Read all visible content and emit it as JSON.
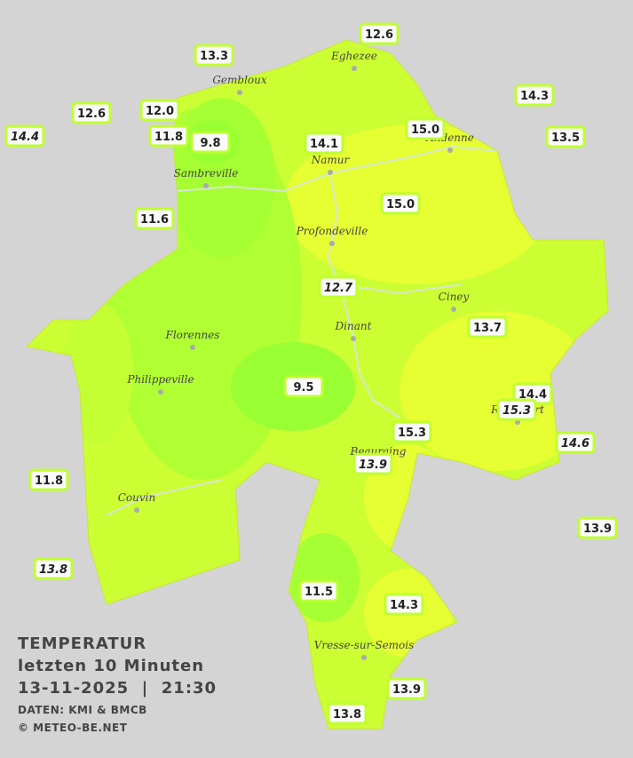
{
  "title": {
    "line1": "TEMPERATUR",
    "line2": "letzten 10 Minuten",
    "line3": "13-11-2025  |  21:30",
    "source": "DATEN: KMI & BMCB",
    "credit": "© METEO-BE.NET"
  },
  "cities": [
    "Eghezee",
    "Gembloux",
    "Andenne",
    "Namur",
    "Sambreville",
    "Profondeville",
    "Ciney",
    "Dinant",
    "Florennes",
    "Philippeville",
    "Rochefort",
    "Beauraing",
    "Couvin",
    "Vresse-sur-Semois"
  ],
  "stations": [
    {
      "label": "12.6",
      "italic": false
    },
    {
      "label": "13.3",
      "italic": false
    },
    {
      "label": "14.3",
      "italic": false
    },
    {
      "label": "12.6",
      "italic": false
    },
    {
      "label": "12.0",
      "italic": false
    },
    {
      "label": "14.4",
      "italic": true
    },
    {
      "label": "11.8",
      "italic": false
    },
    {
      "label": "9.8",
      "italic": false
    },
    {
      "label": "15.0",
      "italic": false
    },
    {
      "label": "13.5",
      "italic": false
    },
    {
      "label": "14.1",
      "italic": false
    },
    {
      "label": "15.0",
      "italic": false
    },
    {
      "label": "11.6",
      "italic": false
    },
    {
      "label": "12.7",
      "italic": true
    },
    {
      "label": "13.7",
      "italic": false
    },
    {
      "label": "9.5",
      "italic": false
    },
    {
      "label": "14.4",
      "italic": false
    },
    {
      "label": "15.3",
      "italic": true
    },
    {
      "label": "15.3",
      "italic": false
    },
    {
      "label": "14.6",
      "italic": true
    },
    {
      "label": "13.9",
      "italic": true
    },
    {
      "label": "11.8",
      "italic": false
    },
    {
      "label": "13.9",
      "italic": false
    },
    {
      "label": "13.8",
      "italic": true
    },
    {
      "label": "11.5",
      "italic": false
    },
    {
      "label": "14.3",
      "italic": false
    },
    {
      "label": "13.9",
      "italic": false
    },
    {
      "label": "13.8",
      "italic": false
    }
  ]
}
